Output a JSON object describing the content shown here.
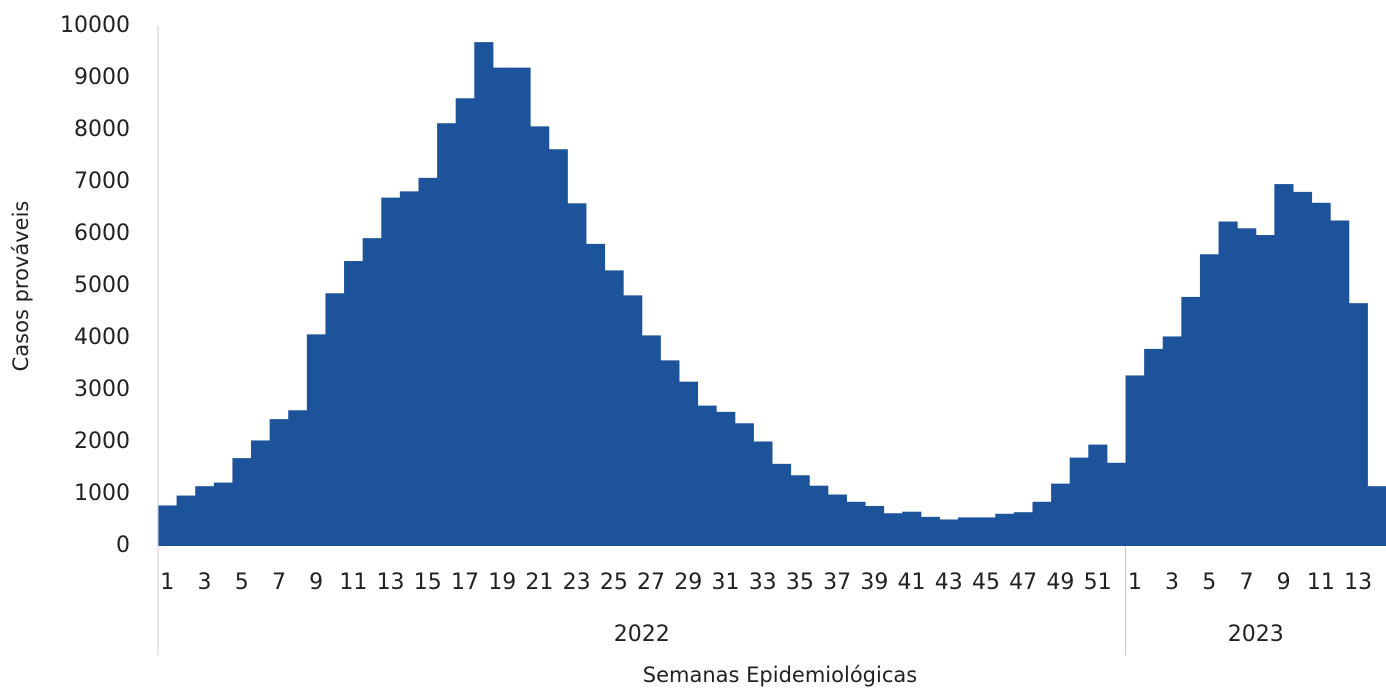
{
  "chart_data": {
    "type": "bar",
    "y_label": "Casos prováveis",
    "x_label": "Semanas Epidemiológicas",
    "groups": [
      "2022",
      "2023"
    ],
    "categories": [
      "1",
      null,
      "3",
      null,
      "5",
      null,
      "7",
      null,
      "9",
      null,
      "11",
      null,
      "13",
      null,
      "15",
      null,
      "17",
      null,
      "19",
      null,
      "21",
      null,
      "23",
      null,
      "25",
      null,
      "27",
      null,
      "29",
      null,
      "31",
      null,
      "33",
      null,
      "35",
      null,
      "37",
      null,
      "39",
      null,
      "41",
      null,
      "43",
      null,
      "45",
      null,
      "47",
      null,
      "49",
      null,
      "51",
      null,
      "1",
      null,
      "3",
      null,
      "5",
      null,
      "7",
      null,
      "9",
      null,
      "11",
      null,
      "13",
      null
    ],
    "values": [
      780,
      970,
      1150,
      1220,
      1690,
      2030,
      2440,
      2610,
      4070,
      4860,
      5480,
      5920,
      6700,
      6820,
      7080,
      8130,
      8610,
      9690,
      9200,
      9200,
      8070,
      7630,
      6590,
      5810,
      5300,
      4820,
      4050,
      3570,
      3160,
      2700,
      2580,
      2360,
      2010,
      1580,
      1360,
      1160,
      990,
      850,
      770,
      630,
      660,
      560,
      510,
      550,
      550,
      620,
      650,
      850,
      1200,
      1700,
      1950,
      1600,
      3280,
      3790,
      4030,
      4790,
      5610,
      6240,
      6110,
      5980,
      6960,
      6810,
      6600,
      6260,
      4670,
      1150
    ],
    "color": "#1c539b",
    "ylim": [
      0,
      10000
    ],
    "yticks": [
      0,
      1000,
      2000,
      3000,
      4000,
      5000,
      6000,
      7000,
      8000,
      9000,
      10000
    ],
    "grid": false
  }
}
